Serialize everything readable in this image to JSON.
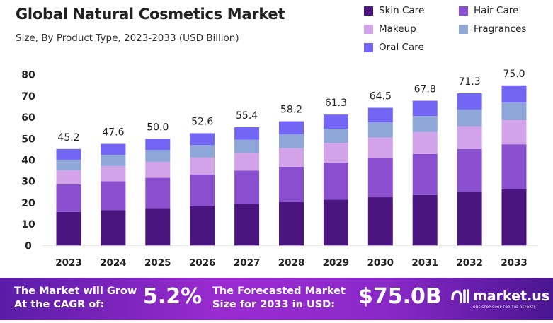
{
  "chart_data": {
    "type": "bar",
    "stacked": true,
    "title": "Global Natural Cosmetics Market",
    "subtitle": "Size, By Product Type, 2023-2033 (USD Billion)",
    "categories": [
      "2023",
      "2024",
      "2025",
      "2026",
      "2027",
      "2028",
      "2029",
      "2030",
      "2031",
      "2032",
      "2033"
    ],
    "ylim": [
      0,
      80
    ],
    "yticks": [
      0,
      10,
      20,
      30,
      40,
      50,
      60,
      70,
      80
    ],
    "grid": false,
    "legend_position": "top-right",
    "totals": [
      "45.2",
      "47.6",
      "50.0",
      "52.6",
      "55.4",
      "58.2",
      "61.3",
      "64.5",
      "67.8",
      "71.3",
      "75.0"
    ],
    "series": [
      {
        "name": "Skin Care",
        "color": "#4b1580",
        "values": [
          15.7,
          16.6,
          17.5,
          18.4,
          19.4,
          20.4,
          21.5,
          22.6,
          23.7,
          25.0,
          26.3
        ]
      },
      {
        "name": "Hair Care",
        "color": "#8a4fcf",
        "values": [
          12.9,
          13.5,
          14.2,
          14.9,
          15.7,
          16.5,
          17.3,
          18.3,
          19.2,
          20.2,
          21.1
        ]
      },
      {
        "name": "Makeup",
        "color": "#d2a3e8",
        "values": [
          6.7,
          7.1,
          7.5,
          7.9,
          8.3,
          8.7,
          9.2,
          9.7,
          10.2,
          10.7,
          11.3
        ]
      },
      {
        "name": "Fragrances",
        "color": "#8fa6d9",
        "values": [
          4.9,
          5.2,
          5.5,
          5.8,
          6.1,
          6.4,
          6.7,
          7.1,
          7.5,
          7.8,
          8.3
        ]
      },
      {
        "name": "Oral Care",
        "color": "#7366f5",
        "values": [
          5.0,
          5.2,
          5.3,
          5.6,
          5.9,
          6.2,
          6.6,
          6.8,
          7.2,
          7.6,
          8.0
        ]
      }
    ]
  },
  "banner": {
    "cagr_text_1": "The Market will Grow",
    "cagr_text_2": "At the CAGR of:",
    "cagr_value": "5.2%",
    "forecast_text_1": "The Forecasted Market",
    "forecast_text_2": "Size for 2033 in USD:",
    "forecast_value": "$75.0B",
    "logo_name": "market.us",
    "logo_tagline": "ONE STOP SHOP FOR THE REPORTS"
  }
}
